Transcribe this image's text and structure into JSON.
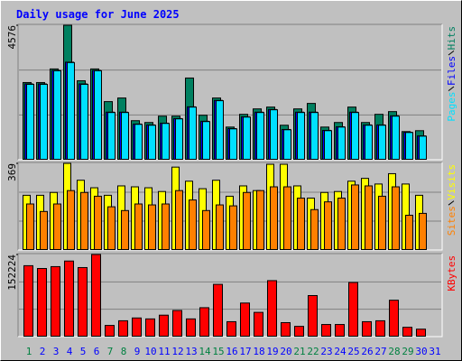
{
  "chart_data": [
    {
      "type": "bar",
      "title": "Daily usage for June 2025",
      "ylim": [
        0,
        4576
      ],
      "yticks": [
        4576
      ],
      "series": [
        {
          "name": "Hits",
          "color": "#008060",
          "values": [
            2627,
            2627,
            3090,
            4576,
            2688,
            3090,
            1978,
            2101,
            1329,
            1267,
            1483,
            1483,
            2781,
            1514,
            2101,
            1112,
            1545,
            1730,
            1792,
            1174,
            1730,
            1916,
            1112,
            1267,
            1792,
            1267,
            1545,
            1638,
            958,
            989,
            null
          ]
        },
        {
          "name": "Files",
          "color": "#0000ff",
          "values": [
            2580,
            2580,
            3040,
            3320,
            2580,
            3040,
            1620,
            1620,
            1215,
            1185,
            1245,
            1400,
            1800,
            1310,
            2020,
            1060,
            1460,
            1620,
            1710,
            1030,
            1620,
            1620,
            1000,
            1120,
            1620,
            1185,
            1185,
            1495,
            935,
            810,
            null
          ]
        },
        {
          "name": "Pages",
          "color": "#00e0ff",
          "values": [
            2565,
            2565,
            3028,
            3306,
            2565,
            3028,
            1607,
            1607,
            1205,
            1174,
            1236,
            1391,
            1792,
            1298,
            2009,
            1051,
            1452,
            1607,
            1700,
            1020,
            1607,
            1607,
            989,
            1112,
            1607,
            1174,
            1174,
            1483,
            927,
            803,
            null
          ]
        }
      ]
    },
    {
      "type": "bar",
      "ylim": [
        0,
        369
      ],
      "yticks": [
        369
      ],
      "series": [
        {
          "name": "Visits",
          "color": "#ffff00",
          "values": [
            233,
            233,
            245,
            369,
            297,
            265,
            233,
            273,
            269,
            265,
            249,
            353,
            293,
            261,
            297,
            229,
            273,
            253,
            365,
            365,
            273,
            221,
            245,
            249,
            293,
            305,
            281,
            325,
            281,
            233,
            null
          ]
        },
        {
          "name": "Sites",
          "color": "#ff8000",
          "values": [
            196,
            164,
            196,
            253,
            245,
            229,
            184,
            168,
            196,
            192,
            196,
            253,
            213,
            168,
            192,
            188,
            245,
            253,
            269,
            269,
            221,
            172,
            205,
            221,
            277,
            273,
            229,
            269,
            148,
            156,
            null
          ]
        }
      ]
    },
    {
      "type": "bar",
      "ylim": [
        0,
        152224
      ],
      "yticks": [
        152224
      ],
      "categories": [
        "1",
        "2",
        "3",
        "4",
        "5",
        "6",
        "7",
        "8",
        "9",
        "10",
        "11",
        "12",
        "13",
        "14",
        "15",
        "16",
        "17",
        "18",
        "19",
        "20",
        "21",
        "22",
        "23",
        "24",
        "25",
        "26",
        "27",
        "28",
        "29",
        "30",
        "31"
      ],
      "category_colors": [
        "#008040",
        "#0000ff",
        "#0000ff",
        "#0000ff",
        "#0000ff",
        "#0000ff",
        "#008040",
        "#008040",
        "#0000ff",
        "#0000ff",
        "#0000ff",
        "#0000ff",
        "#0000ff",
        "#008040",
        "#008040",
        "#0000ff",
        "#0000ff",
        "#0000ff",
        "#0000ff",
        "#0000ff",
        "#008040",
        "#008040",
        "#0000ff",
        "#0000ff",
        "#0000ff",
        "#0000ff",
        "#0000ff",
        "#008040",
        "#008040",
        "#0000ff",
        "#0000ff"
      ],
      "series": [
        {
          "name": "KBytes",
          "color": "#ff0000",
          "values": [
            131480,
            126290,
            129750,
            140130,
            128020,
            152224,
            20760,
            29410,
            34600,
            32870,
            39790,
            48440,
            32870,
            53630,
            96880,
            27680,
            62280,
            44980,
            103800,
            25950,
            19030,
            76120,
            22490,
            22490,
            100340,
            27680,
            29410,
            67470,
            17300,
            13840,
            null
          ]
        }
      ]
    }
  ]
}
